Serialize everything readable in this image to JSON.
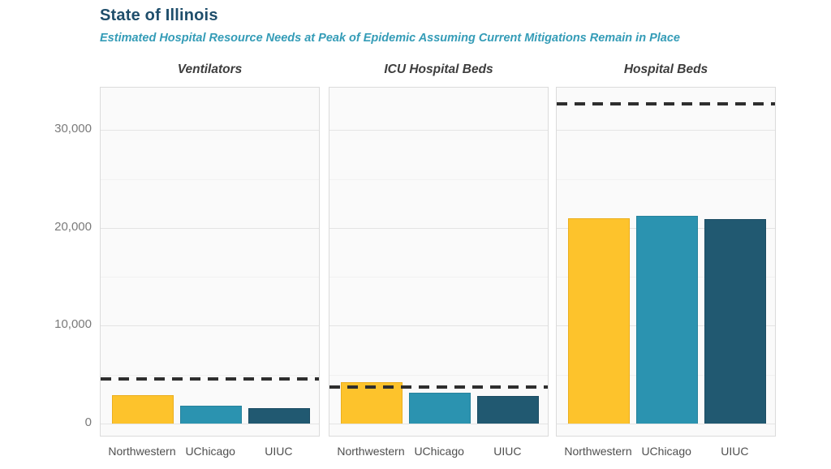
{
  "page": {
    "background": "#ffffff"
  },
  "chart_data": {
    "type": "bar",
    "title": "State of Illinois",
    "subtitle": "Estimated Hospital Resource Needs at Peak of Epidemic Assuming Current Mitigations Remain in Place",
    "title_color": "#1F4E6B",
    "subtitle_color": "#349CB7",
    "categories": [
      "Northwestern",
      "UChicago",
      "UIUC"
    ],
    "series_colors": [
      "#FDC32C",
      "#2B93B0",
      "#215971"
    ],
    "series_border_colors": [
      "#EBAE1E",
      "#26829C",
      "#1C4C63"
    ],
    "facets": [
      {
        "label": "Ventilators",
        "values": [
          2900,
          1850,
          1600
        ],
        "capacity_line": 4550
      },
      {
        "label": "ICU Hospital Beds",
        "values": [
          4250,
          3130,
          2800
        ],
        "capacity_line": 3750
      },
      {
        "label": "Hospital Beds",
        "values": [
          20950,
          21250,
          20900
        ],
        "capacity_line": 32650
      }
    ],
    "capacity_line_style": {
      "style": "dashed",
      "color": "#2E2E2E",
      "thickness_px": 3.5
    },
    "yaxis": {
      "min": -1400,
      "max": 34350,
      "ticks": [
        {
          "value": 0,
          "label": "0"
        },
        {
          "value": 10000,
          "label": "10,000"
        },
        {
          "value": 20000,
          "label": "20,000"
        },
        {
          "value": 30000,
          "label": "30,000"
        }
      ],
      "minor_ticks": [
        5000,
        15000,
        25000
      ],
      "grid": true
    },
    "legend": "none",
    "panel_background": "#FAFAFA",
    "panel_border": "#DBDBDB",
    "gridline_major_color": "#E4E4E4",
    "gridline_minor_color": "#F1F1F1"
  }
}
